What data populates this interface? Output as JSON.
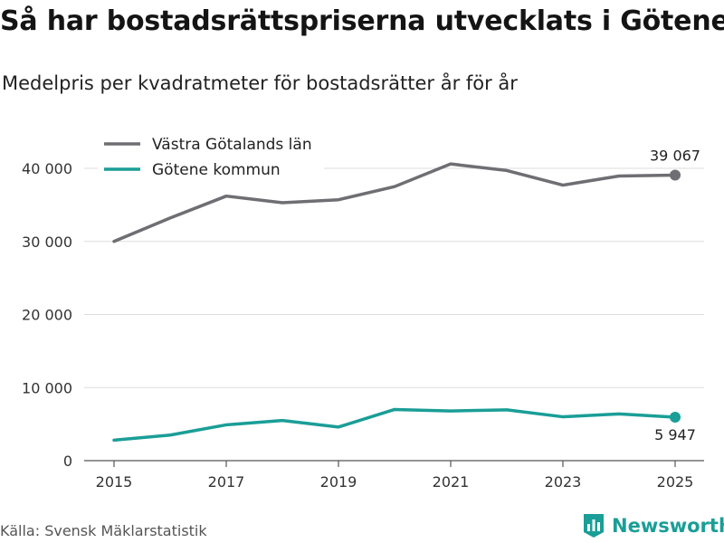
{
  "title": "Så har bostadsrättspriserna utvecklats i Götene",
  "subtitle": "Medelpris per kvadratmeter för bostadsrätter år för år",
  "source": "Källa: Svensk Mäklarstatistik",
  "brand": {
    "name": "Newsworthy",
    "icon": "newsworthy-logo-icon",
    "color": "#1a9e97"
  },
  "chart_data": {
    "type": "line",
    "x": [
      2015,
      2016,
      2017,
      2018,
      2019,
      2020,
      2021,
      2022,
      2023,
      2024,
      2025
    ],
    "x_ticks": [
      "2015",
      "2017",
      "2019",
      "2021",
      "2023",
      "2025"
    ],
    "y_ticks": [
      "0",
      "10 000",
      "20 000",
      "30 000",
      "40 000"
    ],
    "ylim": [
      0,
      40000
    ],
    "grid": true,
    "legend_position": "top-left",
    "series": [
      {
        "name": "Västra Götalands län",
        "color": "#6e6e73",
        "values": [
          30000,
          33200,
          36200,
          35300,
          35700,
          37500,
          40600,
          39700,
          37700,
          38950,
          39067
        ],
        "end_label": "39 067",
        "end_label_position": "above"
      },
      {
        "name": "Götene kommun",
        "color": "#1a9e97",
        "values": [
          2800,
          3500,
          4900,
          5500,
          4600,
          7000,
          6800,
          6950,
          6000,
          6400,
          5947
        ],
        "end_label": "5 947",
        "end_label_position": "below"
      }
    ]
  }
}
